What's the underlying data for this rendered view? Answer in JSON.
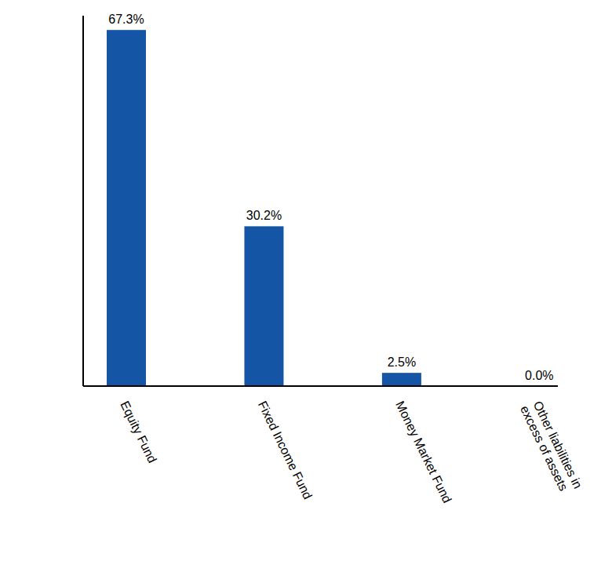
{
  "chart_data": {
    "type": "bar",
    "categories": [
      "Equity Fund",
      "Fixed Income Fund",
      "Money Market Fund",
      "Other liabilities in excess of assets"
    ],
    "values": [
      67.3,
      30.2,
      2.5,
      0.0
    ],
    "value_labels": [
      "67.3%",
      "30.2%",
      "2.5%",
      "0.0%"
    ],
    "color": "#1555a5",
    "ylim": [
      0,
      70
    ],
    "data_labels": true,
    "tick_labels": "x",
    "grid": false
  }
}
